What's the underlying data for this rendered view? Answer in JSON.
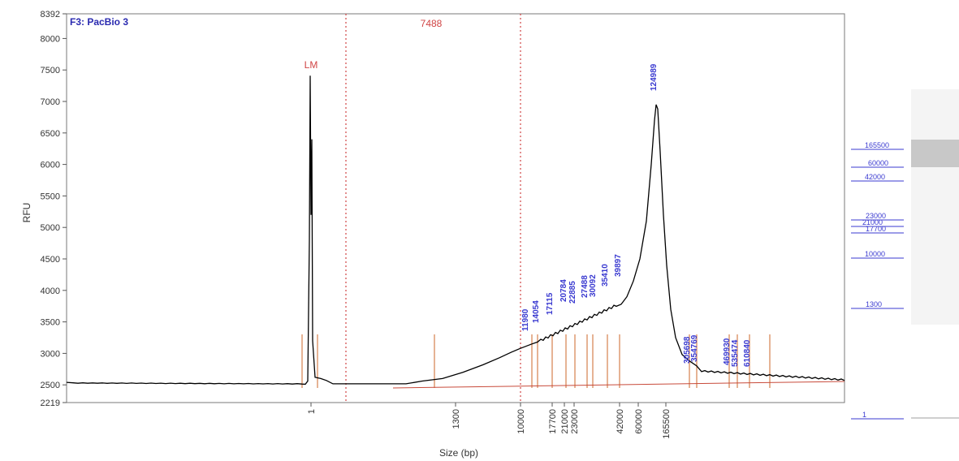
{
  "chart_data": {
    "type": "line",
    "title": "F3: PacBio 3",
    "xlabel": "Size (bp)",
    "ylabel": "RFU",
    "ylim": [
      2219,
      8392
    ],
    "y_ticks": [
      "8392",
      "8000",
      "7500",
      "7000",
      "6500",
      "6000",
      "5500",
      "5000",
      "4500",
      "4000",
      "3500",
      "3000",
      "2500",
      "2219"
    ],
    "x_ticks": [
      "1",
      "1300",
      "10000",
      "17700",
      "21000",
      "23000",
      "42000",
      "60000",
      "165500"
    ],
    "region_label": "7488",
    "marker_label": "LM",
    "series": [
      {
        "x": [
          "start",
          "1",
          "10000",
          "11980",
          "14054",
          "17115",
          "20784",
          "22885",
          "27488",
          "30092",
          "35410",
          "39897",
          "124989",
          "165500",
          "305698",
          "354769",
          "469930",
          "535474",
          "610840",
          "end"
        ],
        "values": [
          2540,
          7410,
          3000,
          3150,
          3240,
          3400,
          3530,
          3600,
          3680,
          3720,
          3850,
          4000,
          6950,
          3200,
          2900,
          2700,
          2640,
          2600,
          2580,
          2560
        ]
      }
    ],
    "peak_labels": [
      "11980",
      "14054",
      "17115",
      "20784",
      "22885",
      "27488",
      "30092",
      "35410",
      "39897",
      "124989",
      "305698",
      "354769",
      "469930",
      "535474",
      "610840"
    ],
    "gel_labels": [
      "165500",
      "60000",
      "42000",
      "23000",
      "21000",
      "17700",
      "10000",
      "1300",
      "1"
    ],
    "colors": {
      "trace": "#000000",
      "marker": "#d88a5a",
      "baseline": "#c84a3a",
      "peak_text": "#3a3ad0",
      "region": "#d04444",
      "gel_band": "#3a3ad0"
    }
  }
}
